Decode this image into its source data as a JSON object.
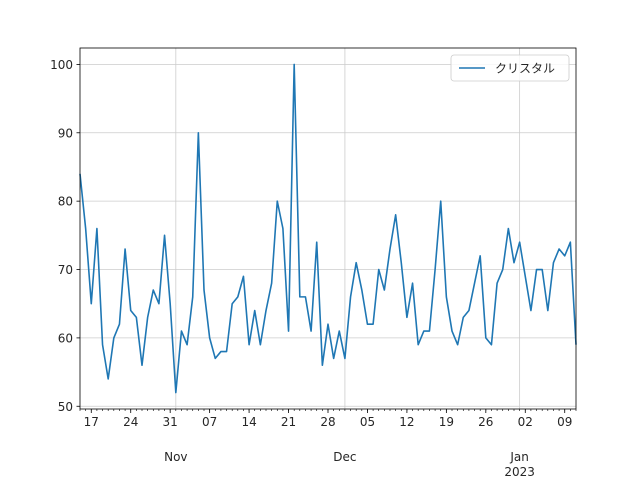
{
  "chart_data": {
    "type": "line",
    "x_start": "2022-10-15",
    "x": [
      "2022-10-15",
      "2022-10-16",
      "2022-10-17",
      "2022-10-18",
      "2022-10-19",
      "2022-10-20",
      "2022-10-21",
      "2022-10-22",
      "2022-10-23",
      "2022-10-24",
      "2022-10-25",
      "2022-10-26",
      "2022-10-27",
      "2022-10-28",
      "2022-10-29",
      "2022-10-30",
      "2022-10-31",
      "2022-11-01",
      "2022-11-02",
      "2022-11-03",
      "2022-11-04",
      "2022-11-05",
      "2022-11-06",
      "2022-11-07",
      "2022-11-08",
      "2022-11-09",
      "2022-11-10",
      "2022-11-11",
      "2022-11-12",
      "2022-11-13",
      "2022-11-14",
      "2022-11-15",
      "2022-11-16",
      "2022-11-17",
      "2022-11-18",
      "2022-11-19",
      "2022-11-20",
      "2022-11-21",
      "2022-11-22",
      "2022-11-23",
      "2022-11-24",
      "2022-11-25",
      "2022-11-26",
      "2022-11-27",
      "2022-11-28",
      "2022-11-29",
      "2022-11-30",
      "2022-12-01",
      "2022-12-02",
      "2022-12-03",
      "2022-12-04",
      "2022-12-05",
      "2022-12-06",
      "2022-12-07",
      "2022-12-08",
      "2022-12-09",
      "2022-12-10",
      "2022-12-11",
      "2022-12-12",
      "2022-12-13",
      "2022-12-14",
      "2022-12-15",
      "2022-12-16",
      "2022-12-17",
      "2022-12-18",
      "2022-12-19",
      "2022-12-20",
      "2022-12-21",
      "2022-12-22",
      "2022-12-23",
      "2022-12-24",
      "2022-12-25",
      "2022-12-26",
      "2022-12-27",
      "2022-12-28",
      "2022-12-29",
      "2022-12-30",
      "2022-12-31",
      "2023-01-01",
      "2023-01-02",
      "2023-01-03",
      "2023-01-04",
      "2023-01-05",
      "2023-01-06",
      "2023-01-07",
      "2023-01-08",
      "2023-01-09",
      "2023-01-10",
      "2023-01-11"
    ],
    "series": [
      {
        "name": "クリスタル",
        "color": "#1f77b4",
        "values": [
          84,
          76,
          65,
          76,
          59,
          54,
          60,
          62,
          73,
          64,
          63,
          56,
          63,
          67,
          65,
          75,
          65,
          52,
          61,
          59,
          66,
          90,
          67,
          60,
          57,
          58,
          58,
          65,
          66,
          69,
          59,
          64,
          59,
          64,
          68,
          80,
          76,
          61,
          100,
          66,
          66,
          61,
          74,
          56,
          62,
          57,
          61,
          57,
          66,
          71,
          67,
          62,
          62,
          70,
          67,
          73,
          78,
          71,
          63,
          68,
          59,
          61,
          61,
          70,
          80,
          66,
          61,
          59,
          63,
          64,
          68,
          72,
          60,
          59,
          68,
          70,
          76,
          71,
          74,
          69,
          64,
          70,
          70,
          64,
          71,
          73,
          72,
          74,
          59
        ]
      }
    ],
    "ylim": [
      49.6,
      102.4
    ],
    "yticks": [
      50,
      60,
      70,
      80,
      90,
      100
    ],
    "xticks_major": [
      {
        "date": "2022-10-17",
        "label": "17"
      },
      {
        "date": "2022-10-24",
        "label": "24"
      },
      {
        "date": "2022-10-31",
        "label": "31"
      },
      {
        "date": "2022-11-07",
        "label": "07"
      },
      {
        "date": "2022-11-14",
        "label": "14"
      },
      {
        "date": "2022-11-21",
        "label": "21"
      },
      {
        "date": "2022-11-28",
        "label": "28"
      },
      {
        "date": "2022-12-05",
        "label": "05"
      },
      {
        "date": "2022-12-12",
        "label": "12"
      },
      {
        "date": "2022-12-19",
        "label": "19"
      },
      {
        "date": "2022-12-26",
        "label": "26"
      },
      {
        "date": "2023-01-02",
        "label": "02"
      },
      {
        "date": "2023-01-09",
        "label": "09"
      }
    ],
    "month_labels": [
      {
        "date": "2022-11-01",
        "label": "Nov"
      },
      {
        "date": "2022-12-01",
        "label": "Dec"
      },
      {
        "date": "2023-01-01",
        "label": "Jan"
      }
    ],
    "year_label": {
      "date": "2023-01-01",
      "label": "2023"
    },
    "grid": true,
    "legend_position": "top-right",
    "axis_color": "#000000",
    "grid_color": "#cccccc"
  }
}
